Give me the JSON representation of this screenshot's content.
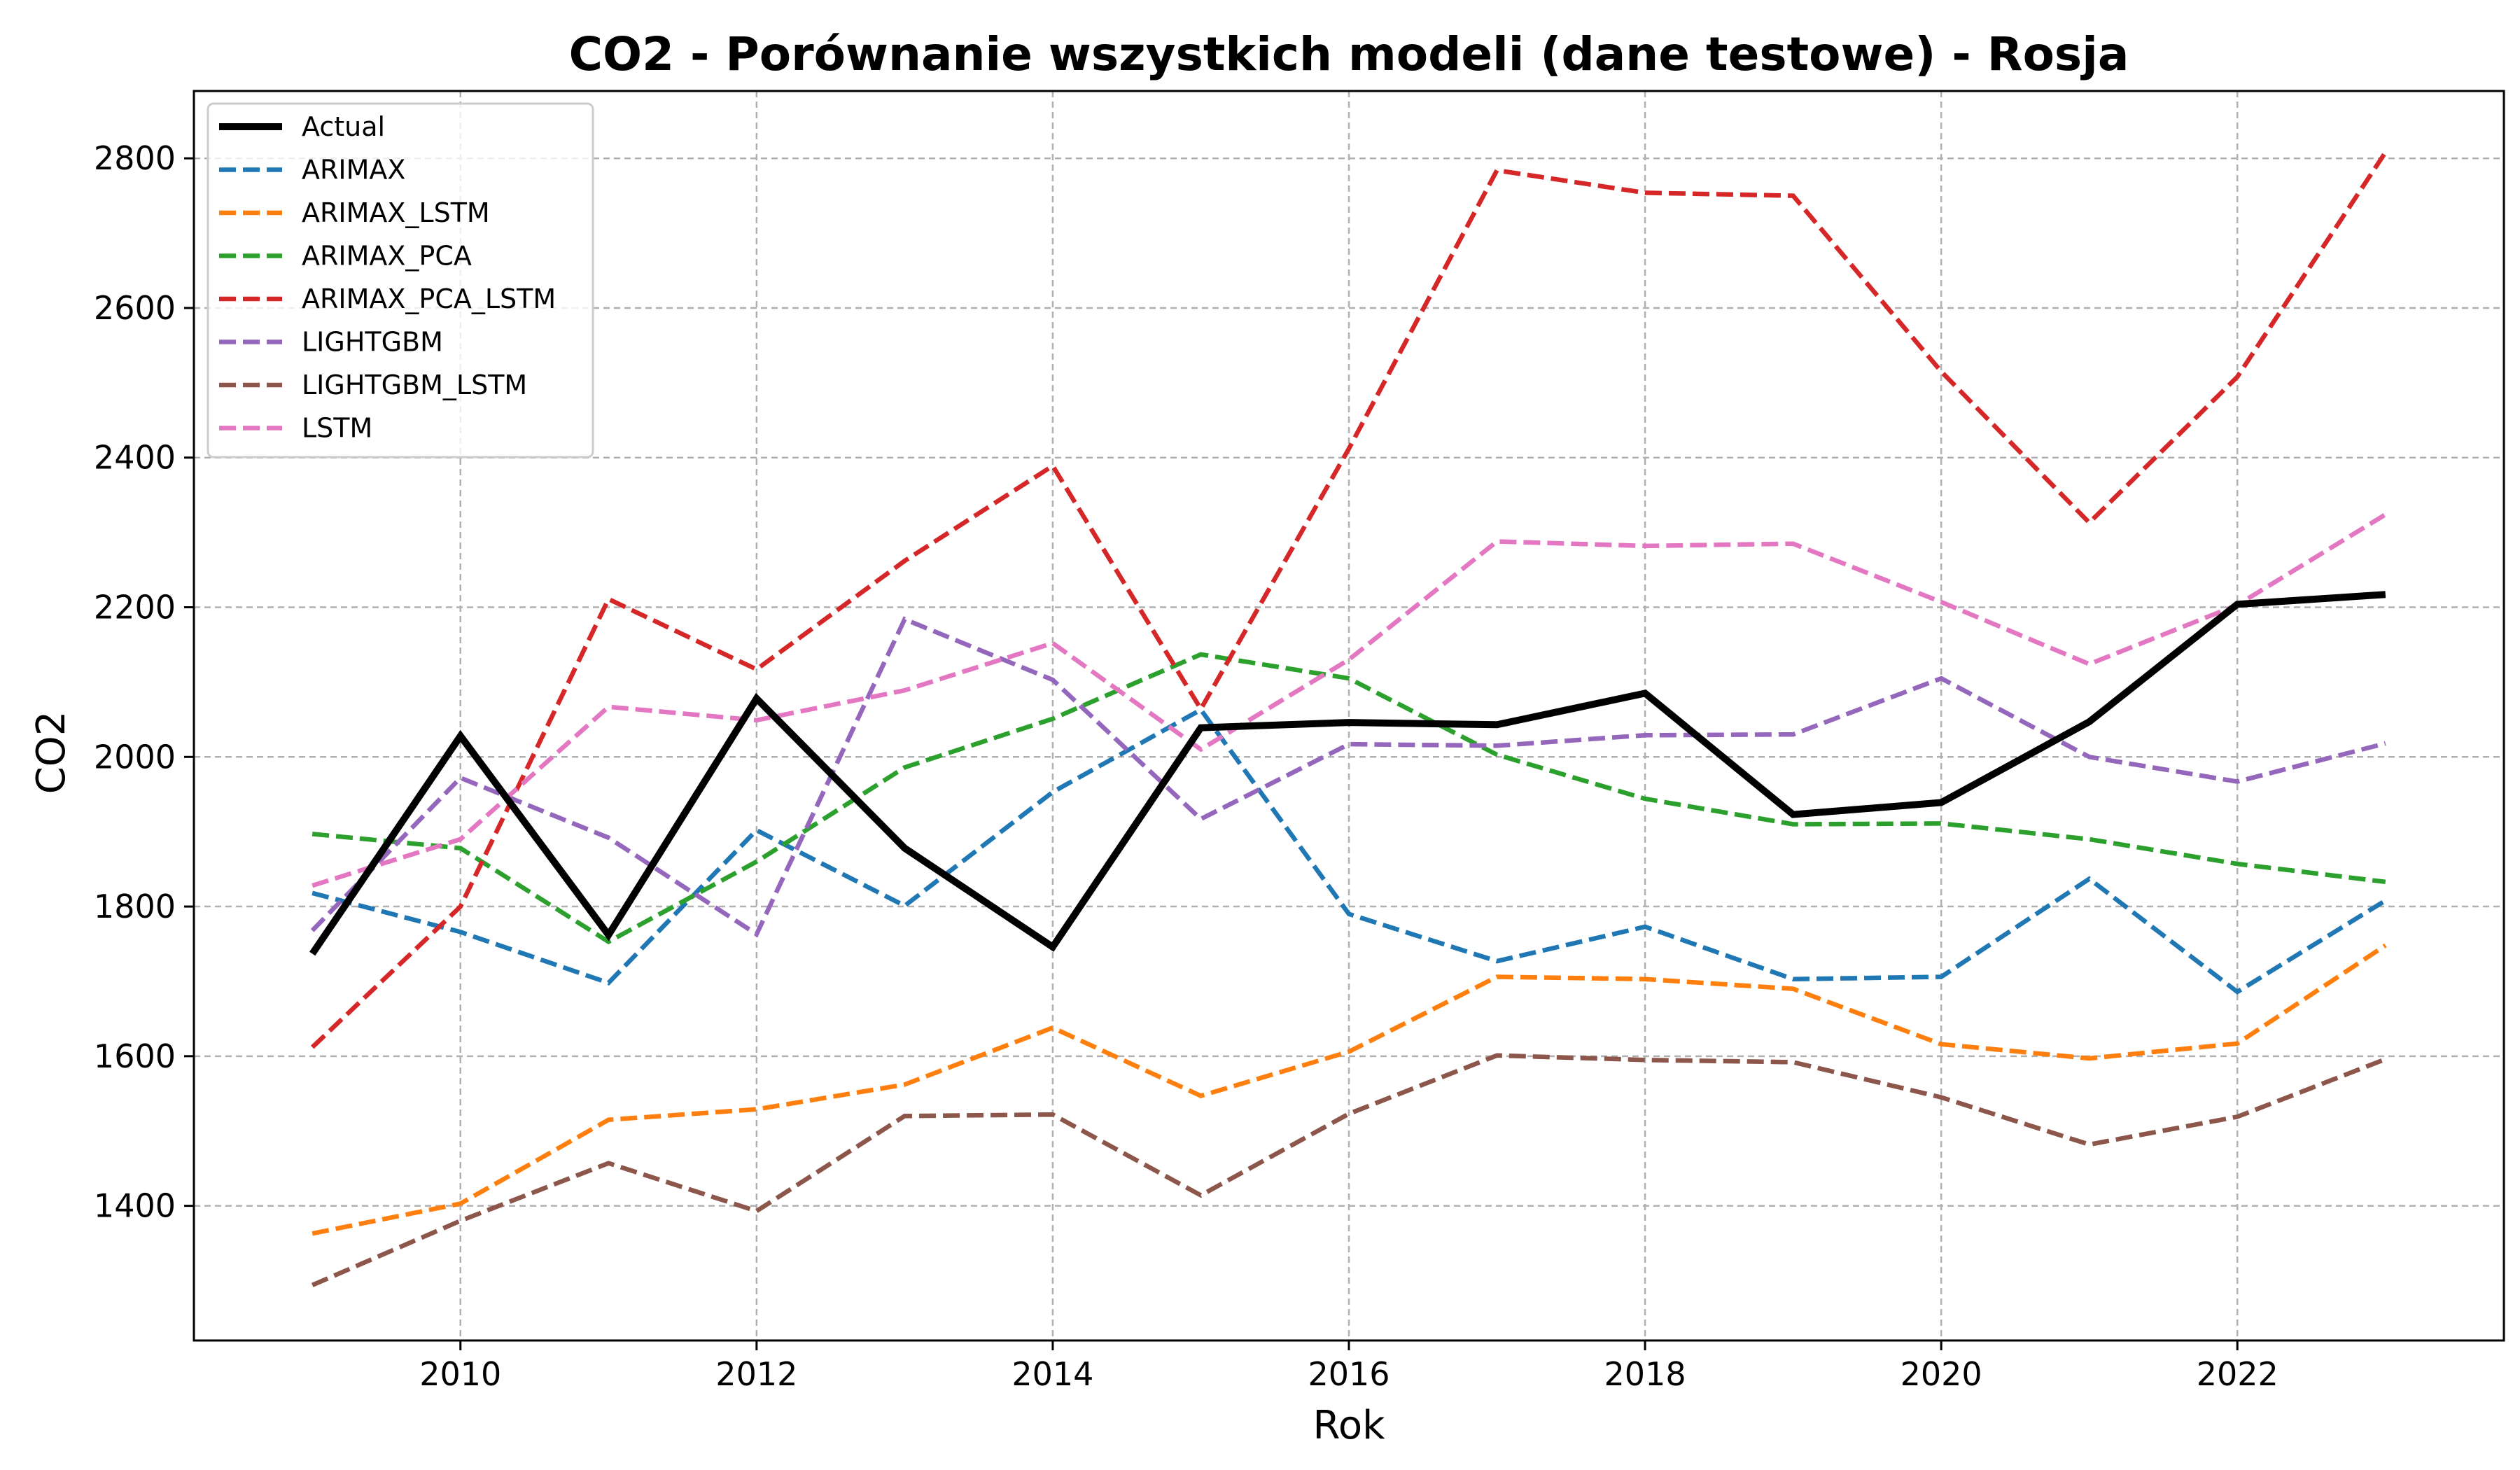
{
  "chart_data": {
    "type": "line",
    "title": "CO2 - Porównanie wszystkich modeli (dane testowe) - Rosja",
    "xlabel": "Rok",
    "ylabel": "CO2",
    "xlim": [
      2008.2,
      2023.8
    ],
    "ylim": [
      1220,
      2890
    ],
    "xticks": [
      "2010",
      "2012",
      "2014",
      "2016",
      "2018",
      "2020",
      "2022"
    ],
    "yticks": [
      "1400",
      "1600",
      "1800",
      "2000",
      "2200",
      "2400",
      "2600",
      "2800"
    ],
    "grid": true,
    "legend_position": "top-left",
    "x": [
      2009,
      2010,
      2011,
      2012,
      2013,
      2014,
      2015,
      2016,
      2017,
      2018,
      2019,
      2020,
      2021,
      2022,
      2023
    ],
    "series": [
      {
        "name": "Actual",
        "color": "#000000",
        "style": "solid",
        "values": [
          1737,
          2028,
          1762,
          2078,
          1878,
          1746,
          2039,
          2046,
          2043,
          2085,
          1923,
          1939,
          2047,
          2204,
          2217
        ]
      },
      {
        "name": "ARIMAX",
        "color": "#1f77b4",
        "style": "dashed",
        "values": [
          1818,
          1766,
          1698,
          1902,
          1801,
          1953,
          2063,
          1790,
          1727,
          1773,
          1703,
          1706,
          1837,
          1686,
          1808
        ]
      },
      {
        "name": "ARIMAX_LSTM",
        "color": "#ff7f0e",
        "style": "dashed",
        "values": [
          1363,
          1403,
          1515,
          1529,
          1562,
          1638,
          1547,
          1606,
          1706,
          1703,
          1690,
          1616,
          1597,
          1617,
          1748
        ]
      },
      {
        "name": "ARIMAX_PCA",
        "color": "#2ca02c",
        "style": "dashed",
        "values": [
          1897,
          1878,
          1753,
          1860,
          1986,
          2051,
          2137,
          2105,
          2003,
          1944,
          1910,
          1911,
          1890,
          1857,
          1833
        ]
      },
      {
        "name": "ARIMAX_PCA_LSTM",
        "color": "#d62728",
        "style": "dashed",
        "values": [
          1612,
          1800,
          2211,
          2117,
          2262,
          2389,
          2064,
          2412,
          2784,
          2754,
          2750,
          2515,
          2313,
          2508,
          2808
        ]
      },
      {
        "name": "LIGHTGBM",
        "color": "#9467bd",
        "style": "dashed",
        "values": [
          1768,
          1972,
          1892,
          1763,
          2184,
          2103,
          1917,
          2017,
          2015,
          2029,
          2030,
          2105,
          2000,
          1967,
          2018
        ]
      },
      {
        "name": "LIGHTGBM_LSTM",
        "color": "#8c564b",
        "style": "dashed",
        "values": [
          1294,
          1380,
          1457,
          1393,
          1520,
          1522,
          1414,
          1523,
          1601,
          1595,
          1592,
          1545,
          1482,
          1519,
          1596
        ]
      },
      {
        "name": "LSTM",
        "color": "#e377c2",
        "style": "dashed",
        "values": [
          1828,
          1890,
          2067,
          2049,
          2089,
          2152,
          2010,
          2130,
          2288,
          2282,
          2285,
          2207,
          2124,
          2203,
          2324
        ]
      }
    ]
  }
}
